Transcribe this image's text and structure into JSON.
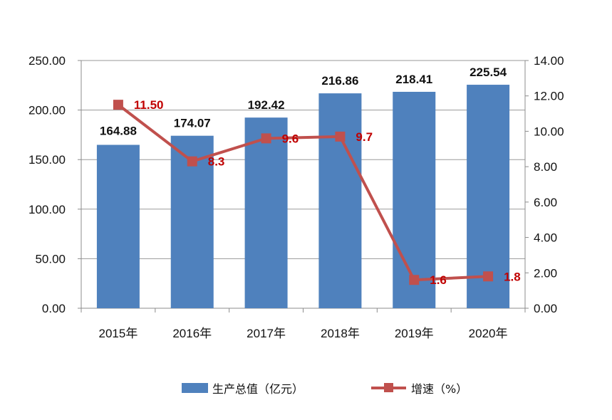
{
  "chart_data": {
    "type": "bar",
    "categories": [
      "2015年",
      "2016年",
      "2017年",
      "2018年",
      "2019年",
      "2020年"
    ],
    "series": [
      {
        "name": "生产总值（亿元）",
        "type": "bar",
        "axis": "left",
        "values": [
          164.88,
          174.07,
          192.42,
          216.86,
          218.41,
          225.54
        ],
        "labels": [
          "164.88",
          "174.07",
          "192.42",
          "216.86",
          "218.41",
          "225.54"
        ],
        "color": "#4F81BD"
      },
      {
        "name": "增速（%）",
        "type": "line",
        "axis": "right",
        "values": [
          11.5,
          8.3,
          9.6,
          9.7,
          1.6,
          1.8
        ],
        "labels": [
          "11.50",
          "8.3",
          "9.6",
          "9.7",
          "1.6",
          "1.8"
        ],
        "color": "#C0504D",
        "label_color": "#C00000"
      }
    ],
    "y_left": {
      "ylim": [
        0,
        250
      ],
      "ticks": [
        "0.00",
        "50.00",
        "100.00",
        "150.00",
        "200.00",
        "250.00"
      ]
    },
    "y_right": {
      "ylim": [
        0,
        14
      ],
      "ticks": [
        "0.00",
        "2.00",
        "4.00",
        "6.00",
        "8.00",
        "10.00",
        "12.00",
        "14.00"
      ]
    },
    "grid": true,
    "legend": "bottom"
  }
}
